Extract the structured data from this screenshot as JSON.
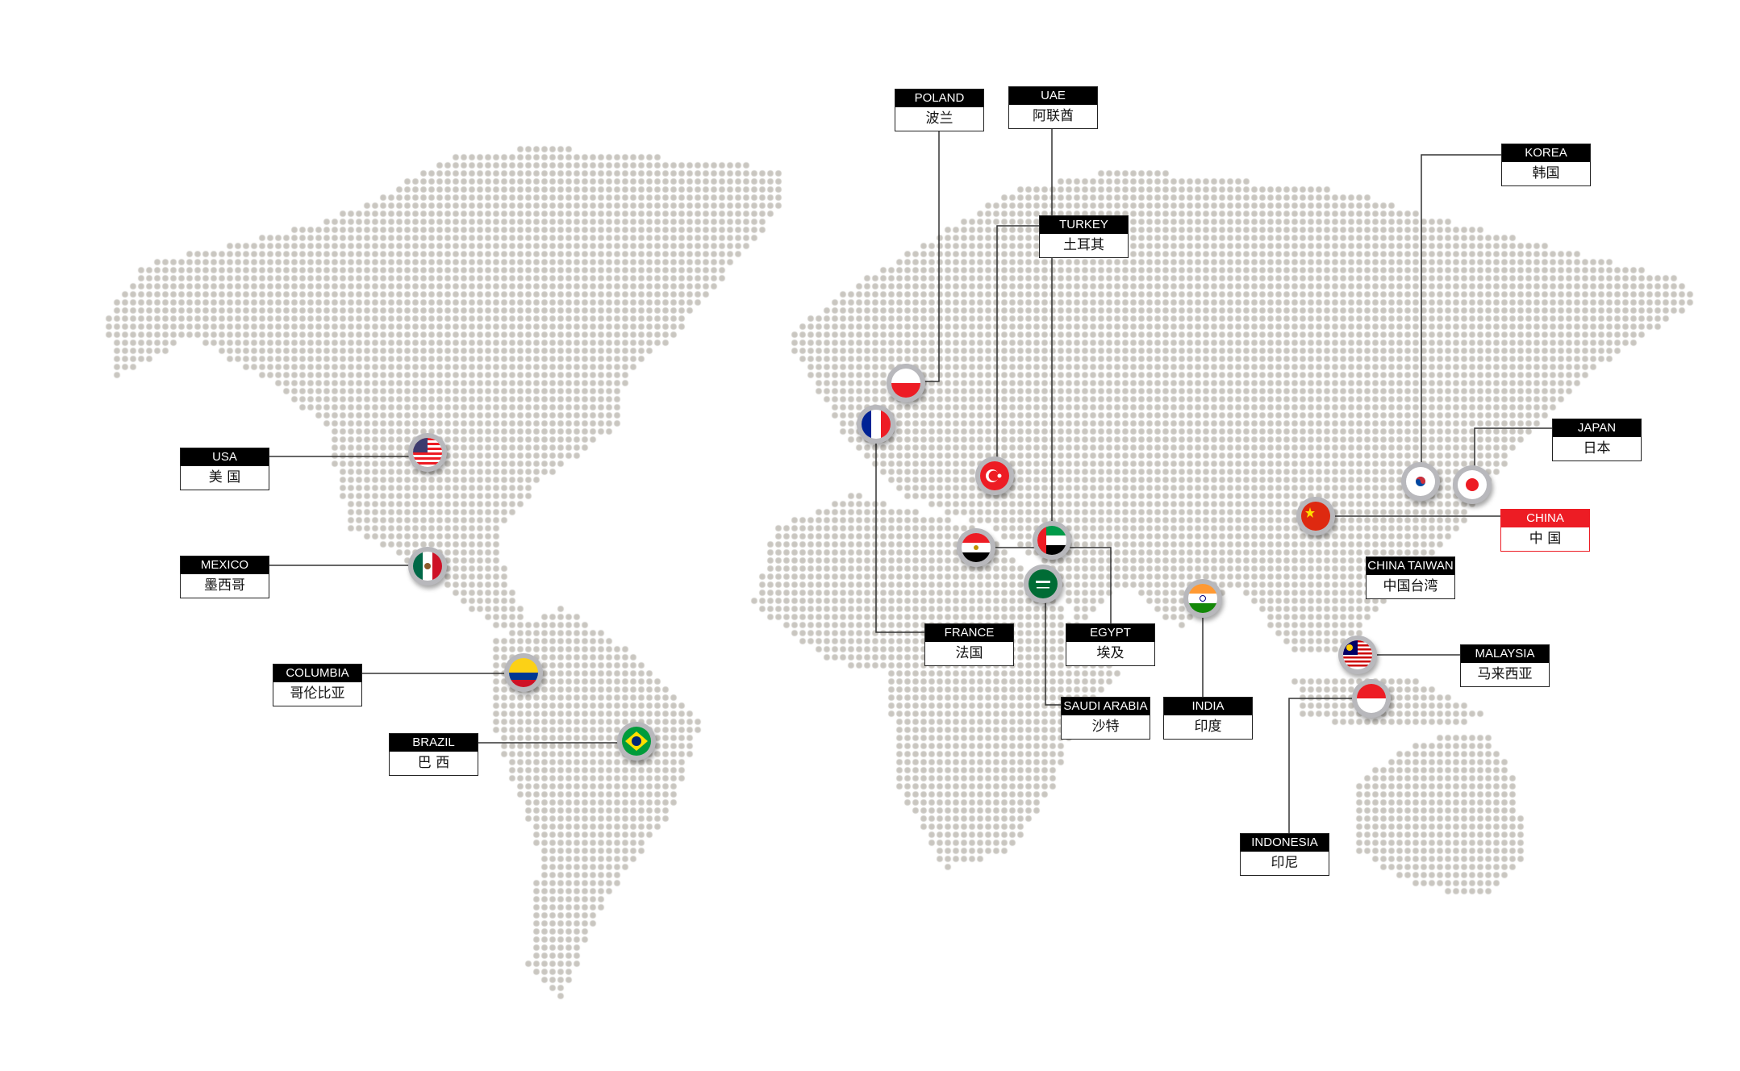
{
  "colors": {
    "dot": "#c9c6c0",
    "label_header": "#000000",
    "highlight": "#ed1c24",
    "line": "#333333"
  },
  "labels": [
    {
      "id": "poland",
      "en": "POLAND",
      "cn": "波兰"
    },
    {
      "id": "uae",
      "en": "UAE",
      "cn": "阿联酋"
    },
    {
      "id": "turkey",
      "en": "TURKEY",
      "cn": "土耳其"
    },
    {
      "id": "korea",
      "en": "KOREA",
      "cn": "韩国"
    },
    {
      "id": "japan",
      "en": "JAPAN",
      "cn": "日本"
    },
    {
      "id": "china",
      "en": "CHINA",
      "cn": "中 国",
      "highlight": true
    },
    {
      "id": "china-taiwan",
      "en": "CHINA TAIWAN",
      "cn": "中国台湾"
    },
    {
      "id": "usa",
      "en": "USA",
      "cn": "美 国"
    },
    {
      "id": "mexico",
      "en": "MEXICO",
      "cn": "墨西哥"
    },
    {
      "id": "columbia",
      "en": "COLUMBIA",
      "cn": "哥伦比亚"
    },
    {
      "id": "brazil",
      "en": "BRAZIL",
      "cn": "巴 西"
    },
    {
      "id": "france",
      "en": "FRANCE",
      "cn": "法国"
    },
    {
      "id": "egypt",
      "en": "EGYPT",
      "cn": "埃及"
    },
    {
      "id": "saudi-arabia",
      "en": "SAUDI ARABIA",
      "cn": "沙特"
    },
    {
      "id": "india",
      "en": "INDIA",
      "cn": "印度"
    },
    {
      "id": "malaysia",
      "en": "MALAYSIA",
      "cn": "马来西亚"
    },
    {
      "id": "indonesia",
      "en": "INDONESIA",
      "cn": "印尼"
    }
  ]
}
